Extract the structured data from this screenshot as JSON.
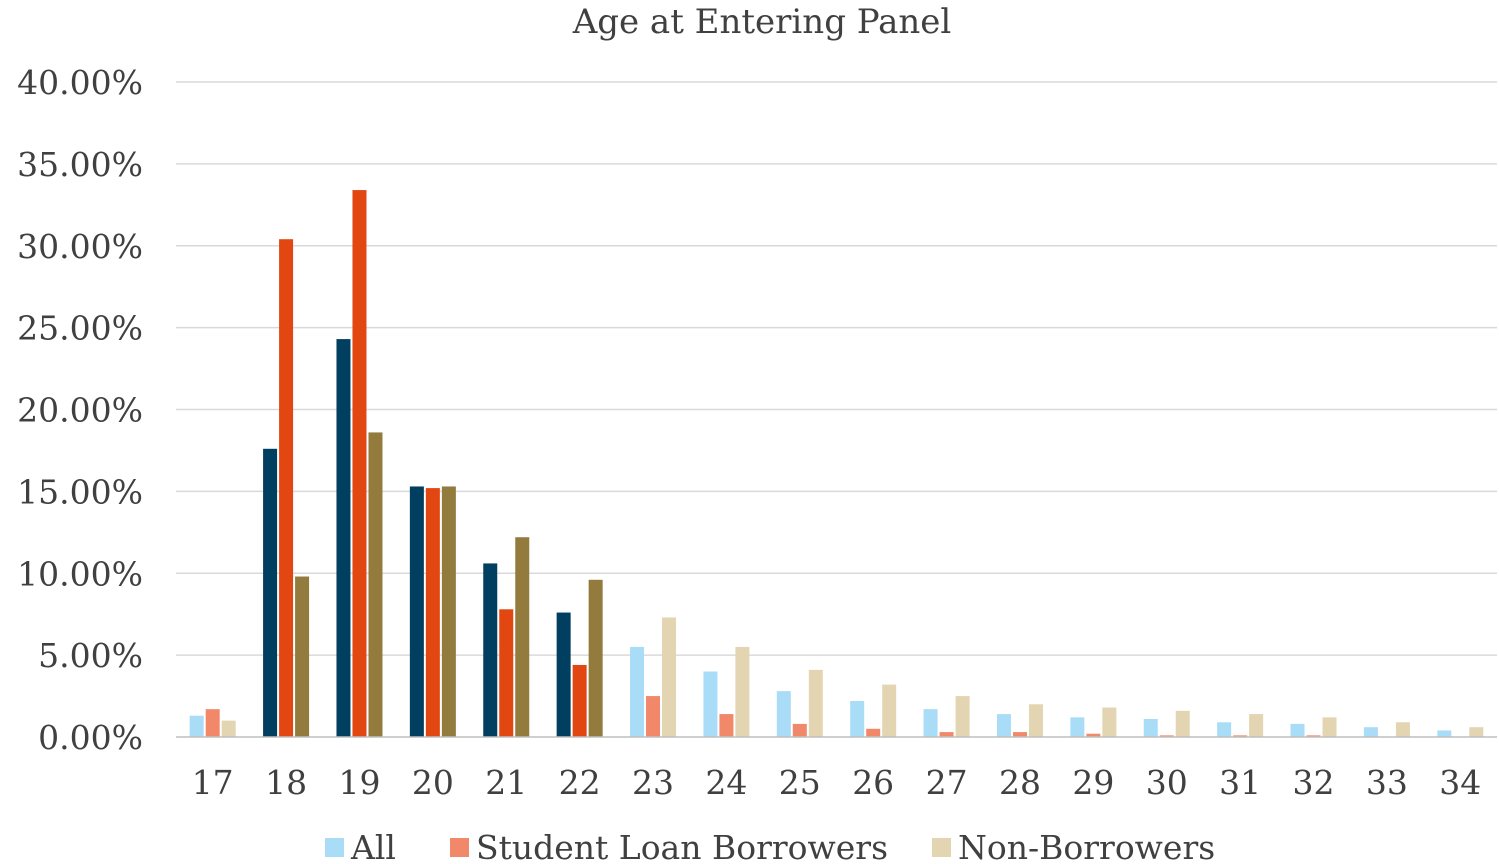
{
  "chart_data": {
    "type": "bar",
    "title": "Age at Entering Panel",
    "xlabel": "",
    "ylabel": "",
    "categories": [
      "17",
      "18",
      "19",
      "20",
      "21",
      "22",
      "23",
      "24",
      "25",
      "26",
      "27",
      "28",
      "29",
      "30",
      "31",
      "32",
      "33",
      "34"
    ],
    "y_tick_labels": [
      "0.00%",
      "5.00%",
      "10.00%",
      "15.00%",
      "20.00%",
      "25.00%",
      "30.00%",
      "35.00%",
      "40.00%"
    ],
    "ylim": [
      0,
      40
    ],
    "y_unit": "%",
    "grid": true,
    "legend_position": "bottom",
    "highlighted_categories": [
      "18",
      "19",
      "20",
      "21",
      "22"
    ],
    "series": [
      {
        "name": "All",
        "color": "#A9DDF7",
        "highlight_color": "#003F5F",
        "values": [
          1.3,
          17.6,
          24.3,
          15.3,
          10.6,
          7.6,
          5.5,
          4.0,
          2.8,
          2.2,
          1.7,
          1.4,
          1.2,
          1.1,
          0.9,
          0.8,
          0.6,
          0.4
        ]
      },
      {
        "name": "Student Loan Borrowers",
        "color": "#F2886A",
        "highlight_color": "#E24712",
        "values": [
          1.7,
          30.4,
          33.4,
          15.2,
          7.8,
          4.4,
          2.5,
          1.4,
          0.8,
          0.5,
          0.3,
          0.3,
          0.2,
          0.1,
          0.1,
          0.1,
          0.0,
          0.0
        ]
      },
      {
        "name": "Non-Borrowers",
        "color": "#E3D5B2",
        "highlight_color": "#927B3D",
        "values": [
          1.0,
          9.8,
          18.6,
          15.3,
          12.2,
          9.6,
          7.3,
          5.5,
          4.1,
          3.2,
          2.5,
          2.0,
          1.8,
          1.6,
          1.4,
          1.2,
          0.9,
          0.6
        ]
      }
    ]
  }
}
